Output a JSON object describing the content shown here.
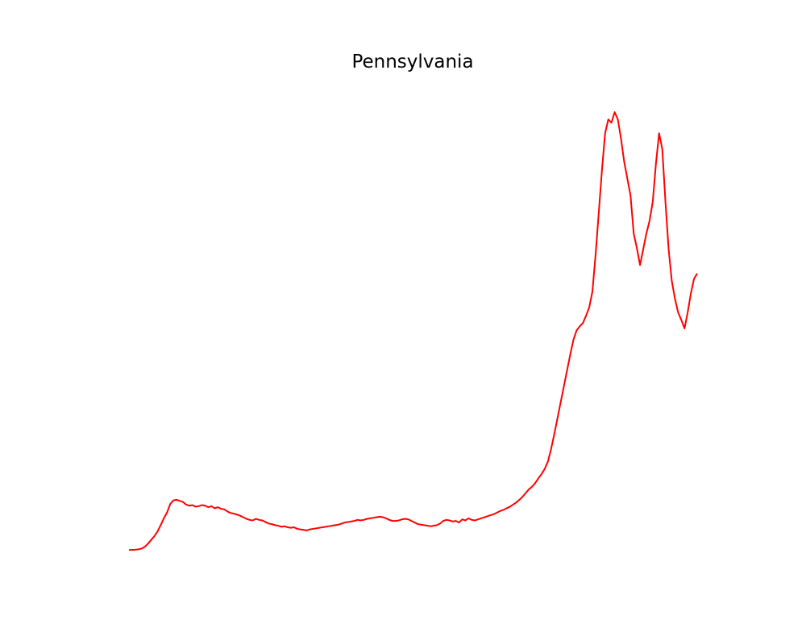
{
  "chart_data": {
    "type": "line",
    "title": "Pennsylvania",
    "xlabel": "",
    "ylabel": "",
    "grid": false,
    "axes_visible": false,
    "legend": "none",
    "series": [
      {
        "color": "#ff0000",
        "values": [
          0.0,
          0.1,
          0.2,
          0.6,
          1.3,
          3.0,
          6.0,
          9.5,
          13.0,
          17.5,
          23.5,
          30.0,
          35.5,
          43.5,
          47.0,
          47.5,
          46.5,
          45.5,
          43.0,
          42.0,
          42.5,
          41.0,
          41.5,
          42.5,
          42.0,
          40.5,
          41.5,
          39.5,
          40.5,
          39.0,
          38.5,
          36.5,
          35.0,
          34.5,
          33.5,
          32.5,
          31.0,
          29.5,
          28.5,
          28.0,
          29.5,
          28.5,
          28.0,
          26.5,
          25.0,
          24.5,
          23.5,
          23.0,
          22.0,
          22.5,
          21.5,
          21.0,
          21.5,
          20.0,
          19.5,
          19.0,
          18.5,
          19.5,
          20.0,
          20.5,
          21.0,
          21.5,
          22.0,
          22.5,
          23.0,
          23.5,
          24.0,
          25.0,
          26.0,
          26.5,
          27.0,
          27.5,
          28.5,
          28.0,
          28.5,
          29.5,
          30.0,
          30.5,
          31.0,
          31.5,
          31.0,
          30.0,
          28.5,
          27.5,
          27.5,
          28.0,
          29.0,
          29.5,
          29.0,
          27.5,
          26.0,
          24.5,
          24.0,
          23.5,
          23.0,
          22.5,
          23.0,
          23.5,
          25.0,
          27.5,
          28.5,
          28.0,
          27.0,
          27.5,
          26.0,
          29.0,
          28.0,
          30.0,
          28.5,
          28.0,
          29.0,
          30.0,
          31.0,
          32.0,
          33.0,
          34.0,
          35.5,
          37.0,
          38.0,
          39.5,
          41.0,
          43.0,
          45.0,
          47.5,
          50.5,
          54.0,
          57.5,
          60.0,
          63.5,
          68.0,
          72.0,
          77.0,
          84.0,
          96.0,
          110.0,
          125.0,
          140.0,
          155.0,
          170.0,
          185.0,
          199.0,
          208.0,
          212.0,
          215.0,
          222.0,
          230.0,
          245.0,
          280.0,
          320.0,
          360.0,
          395.0,
          408.0,
          405.0,
          415.0,
          408.0,
          390.0,
          368.0,
          352.0,
          336.0,
          300.0,
          286.0,
          270.0,
          285.0,
          300.0,
          312.0,
          330.0,
          366.0,
          395.0,
          380.0,
          330.0,
          285.0,
          255.0,
          238.0,
          225.0,
          218.0,
          210.0,
          225.0,
          243.0,
          257.0,
          262.0
        ]
      }
    ],
    "xlim": [
      0,
      179
    ],
    "ylim": [
      -22,
      448
    ]
  }
}
